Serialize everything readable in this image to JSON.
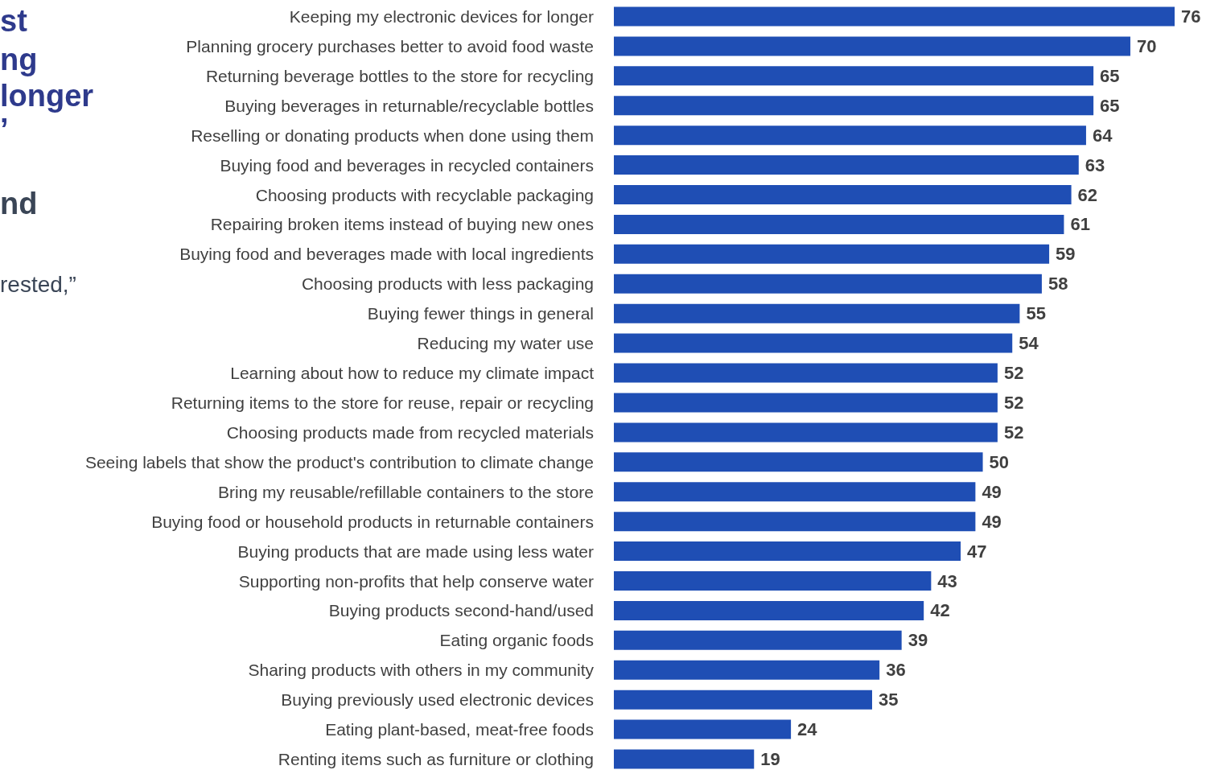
{
  "chart_data": {
    "type": "bar",
    "orientation": "horizontal",
    "data_labels": true,
    "color": "#1f4eb4",
    "categories": [
      "Keeping my electronic devices for longer",
      "Planning grocery purchases better to avoid food waste",
      "Returning beverage bottles to the store for recycling",
      "Buying beverages in returnable/recyclable bottles",
      "Reselling or donating products when done using them",
      "Buying food and beverages in recycled containers",
      "Choosing products with recyclable packaging",
      "Repairing broken items instead of buying new ones",
      "Buying food and beverages made with local ingredients",
      "Choosing products with less packaging",
      "Buying fewer things in general",
      "Reducing my water use",
      "Learning about how to reduce my climate impact",
      "Returning items to the store for reuse, repair or recycling",
      "Choosing products made from recycled materials",
      "Seeing labels that show the product's contribution to climate change",
      "Bring my reusable/refillable containers to the store",
      "Buying food or household products in returnable containers",
      "Buying products that are made using less water",
      "Supporting non-profits that help conserve water",
      "Buying products second-hand/used",
      "Eating organic foods",
      "Sharing products with others in my community",
      "Buying previously used electronic devices",
      "Eating plant-based, meat-free foods",
      "Renting items such as furniture or clothing"
    ],
    "values": [
      76,
      70,
      65,
      65,
      64,
      63,
      62,
      61,
      59,
      58,
      55,
      54,
      52,
      52,
      52,
      50,
      49,
      49,
      47,
      43,
      42,
      39,
      36,
      35,
      24,
      19
    ],
    "annotations": [
      "st",
      "ng",
      "longer",
      "’",
      "nd",
      "rested,”"
    ]
  }
}
